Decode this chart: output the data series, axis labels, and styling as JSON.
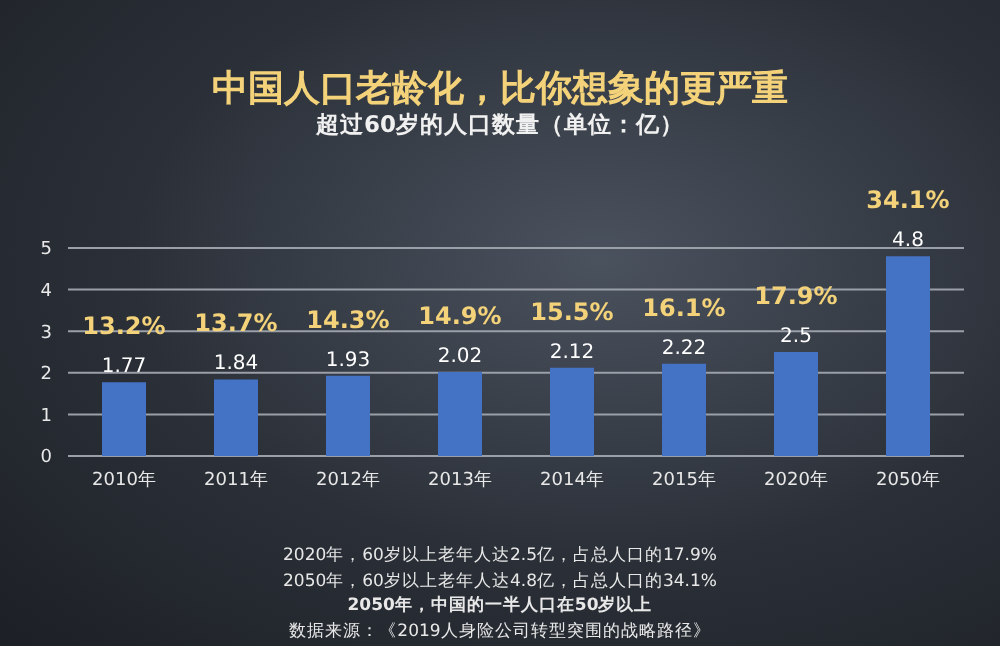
{
  "chart_data": {
    "type": "bar",
    "title": "中国人口老龄化，比你想象的更严重",
    "subtitle": "超过60岁的人口数量（单位：亿）",
    "categories": [
      "2010年",
      "2011年",
      "2012年",
      "2013年",
      "2014年",
      "2015年",
      "2020年",
      "2050年"
    ],
    "values": [
      1.77,
      1.84,
      1.93,
      2.02,
      2.12,
      2.22,
      2.5,
      4.8
    ],
    "color": "#4472c4",
    "ylim": [
      0,
      5
    ],
    "yticks": [
      0,
      1,
      2,
      3,
      4,
      5
    ],
    "grid": "y",
    "data_labels": true,
    "annotations": [
      {
        "text": "13.2%",
        "x": "2010年",
        "y": 1.77
      },
      {
        "text": "13.7%",
        "x": "2011年",
        "y": 1.84
      },
      {
        "text": "14.3%",
        "x": "2012年",
        "y": 1.93
      },
      {
        "text": "14.9%",
        "x": "2013年",
        "y": 2.02
      },
      {
        "text": "15.5%",
        "x": "2014年",
        "y": 2.12
      },
      {
        "text": "16.1%",
        "x": "2015年",
        "y": 2.22
      },
      {
        "text": "17.9%",
        "x": "2020年",
        "y": 2.5
      },
      {
        "text": "34.1%",
        "x": "2050年",
        "y": 4.8
      },
      "2020年，60岁以上老年人达2.5亿，占总人口的17.9%",
      "2050年，60岁以上老年人达4.8亿，占总人口的34.1%",
      "2050年，中国的一半人口在50岁以上",
      "数据来源：《2019人身险公司转型突围的战略路径》"
    ]
  }
}
